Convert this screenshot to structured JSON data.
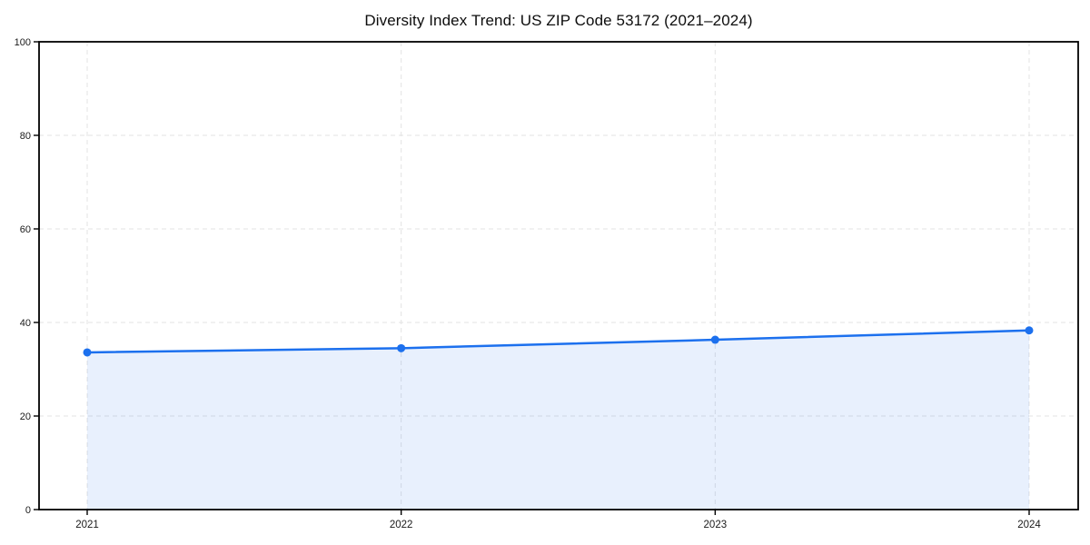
{
  "chart_data": {
    "type": "line",
    "title": "Diversity Index Trend: US ZIP Code 53172 (2021–2024)",
    "x": [
      "2021",
      "2022",
      "2023",
      "2024"
    ],
    "series": [
      {
        "name": "Diversity Index",
        "values": [
          33.6,
          34.5,
          36.3,
          38.3
        ]
      }
    ],
    "xlabel": "",
    "ylabel": "",
    "ylim": [
      0,
      100
    ],
    "yticks": [
      0,
      20,
      40,
      60,
      80,
      100
    ],
    "grid": "dashed",
    "legend": "none",
    "area_fill": true,
    "colors": {
      "line": "#1c70ee",
      "marker": "#1c70ee",
      "fill": "rgba(28, 112, 238, 0.10)",
      "axis": "#000000",
      "grid": "#e3e3e3",
      "tick_label": "#1a1a1a",
      "background": "#ffffff"
    }
  }
}
